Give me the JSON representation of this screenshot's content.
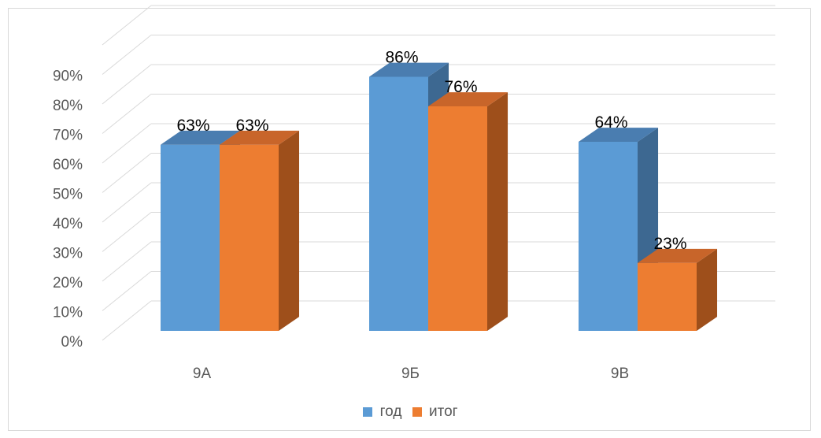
{
  "chart_data": {
    "type": "bar",
    "style": "3d-clustered-column",
    "categories": [
      "9А",
      "9Б",
      "9В"
    ],
    "series": [
      {
        "name": "год",
        "values": [
          63,
          86,
          64
        ],
        "labels": [
          "63%",
          "86%",
          "64%"
        ],
        "color": "#5B9BD5",
        "side_color": "#3D6891",
        "top_color": "#4A7DB0"
      },
      {
        "name": "итог",
        "values": [
          63,
          76,
          23
        ],
        "labels": [
          "63%",
          "76%",
          "23%"
        ],
        "color": "#ED7D31",
        "side_color": "#9E4F1B",
        "top_color": "#C8652A"
      }
    ],
    "ylim": [
      0,
      90
    ],
    "yticks": [
      "0%",
      "10%",
      "20%",
      "30%",
      "40%",
      "50%",
      "60%",
      "70%",
      "80%",
      "90%"
    ],
    "grid": true,
    "legend": "bottom",
    "title": "",
    "xlabel": "",
    "ylabel": ""
  }
}
